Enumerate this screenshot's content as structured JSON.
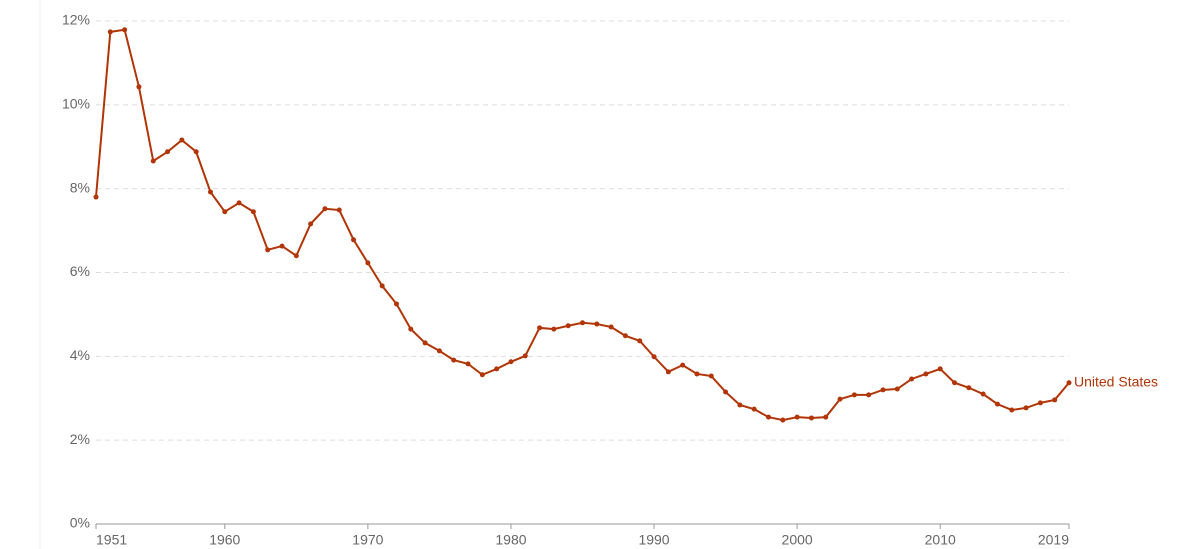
{
  "chart_data": {
    "type": "line",
    "x": [
      1951,
      1952,
      1953,
      1954,
      1955,
      1956,
      1957,
      1958,
      1959,
      1960,
      1961,
      1962,
      1963,
      1964,
      1965,
      1966,
      1967,
      1968,
      1969,
      1970,
      1971,
      1972,
      1973,
      1974,
      1975,
      1976,
      1977,
      1978,
      1979,
      1980,
      1981,
      1982,
      1983,
      1984,
      1985,
      1986,
      1987,
      1988,
      1989,
      1990,
      1991,
      1992,
      1993,
      1994,
      1995,
      1996,
      1997,
      1998,
      1999,
      2000,
      2001,
      2002,
      2003,
      2004,
      2005,
      2006,
      2007,
      2008,
      2009,
      2010,
      2011,
      2012,
      2013,
      2014,
      2015,
      2016,
      2017,
      2018,
      2019
    ],
    "series": [
      {
        "name": "United States",
        "color": "#b13507",
        "values": [
          7.8,
          11.74,
          11.79,
          10.43,
          8.66,
          8.88,
          9.16,
          8.88,
          7.92,
          7.45,
          7.66,
          7.45,
          6.54,
          6.63,
          6.4,
          7.16,
          7.52,
          7.49,
          6.78,
          6.23,
          5.68,
          5.25,
          4.65,
          4.32,
          4.13,
          3.91,
          3.82,
          3.56,
          3.7,
          3.87,
          4.01,
          4.68,
          4.65,
          4.73,
          4.8,
          4.77,
          4.7,
          4.49,
          4.37,
          3.99,
          3.63,
          3.79,
          3.58,
          3.53,
          3.15,
          2.84,
          2.74,
          2.55,
          2.48,
          2.55,
          2.53,
          2.55,
          2.98,
          3.08,
          3.08,
          3.2,
          3.22,
          3.46,
          3.58,
          3.7,
          3.37,
          3.25,
          3.1,
          2.86,
          2.72,
          2.77,
          2.89,
          2.96,
          3.37
        ]
      }
    ],
    "xlim": [
      1951,
      2019
    ],
    "xticks": [
      1951,
      1960,
      1970,
      1980,
      1990,
      2000,
      2010,
      2019
    ],
    "ylim": [
      0,
      12
    ],
    "yticks": [
      {
        "value": 0,
        "label": "0%"
      },
      {
        "value": 2,
        "label": "2%"
      },
      {
        "value": 4,
        "label": "4%"
      },
      {
        "value": 6,
        "label": "6%"
      },
      {
        "value": 8,
        "label": "8%"
      },
      {
        "value": 10,
        "label": "10%"
      },
      {
        "value": 12,
        "label": "12%"
      }
    ],
    "grid": true
  }
}
